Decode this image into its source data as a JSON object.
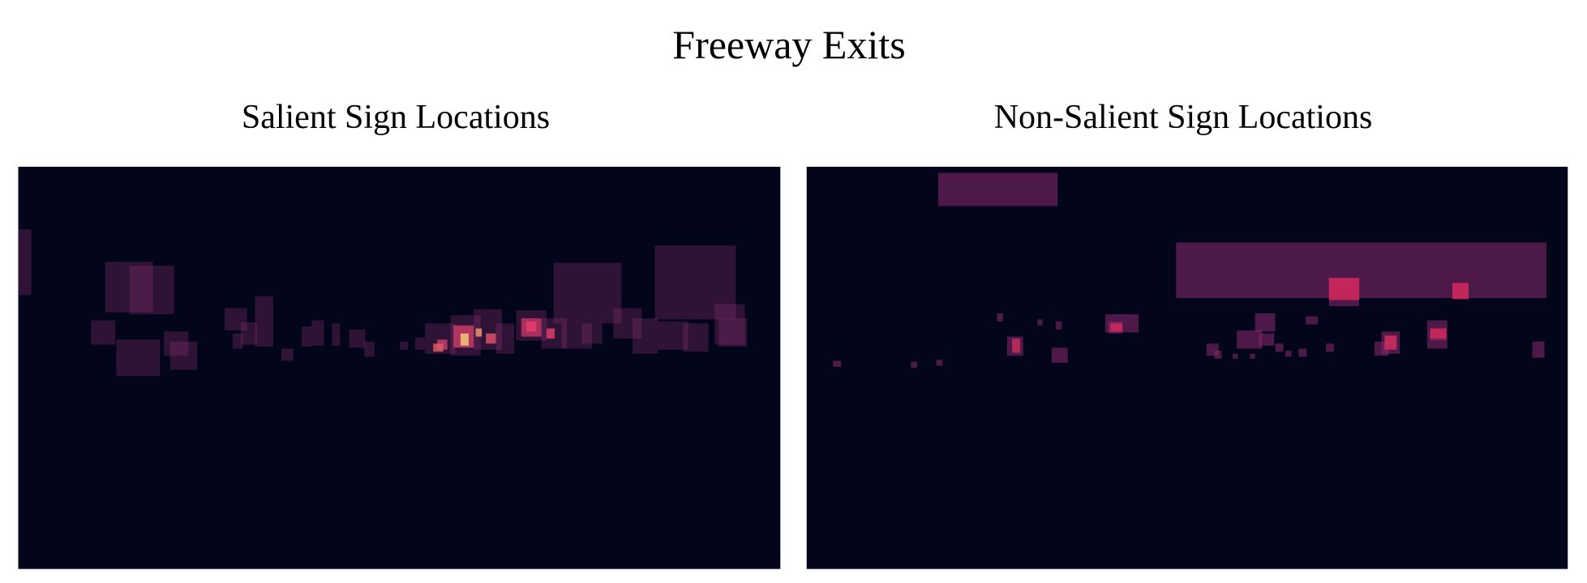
{
  "title": "Freeway Exits",
  "panels": [
    {
      "title": "Salient Sign Locations"
    },
    {
      "title": "Non-Salient Sign Locations"
    }
  ]
}
